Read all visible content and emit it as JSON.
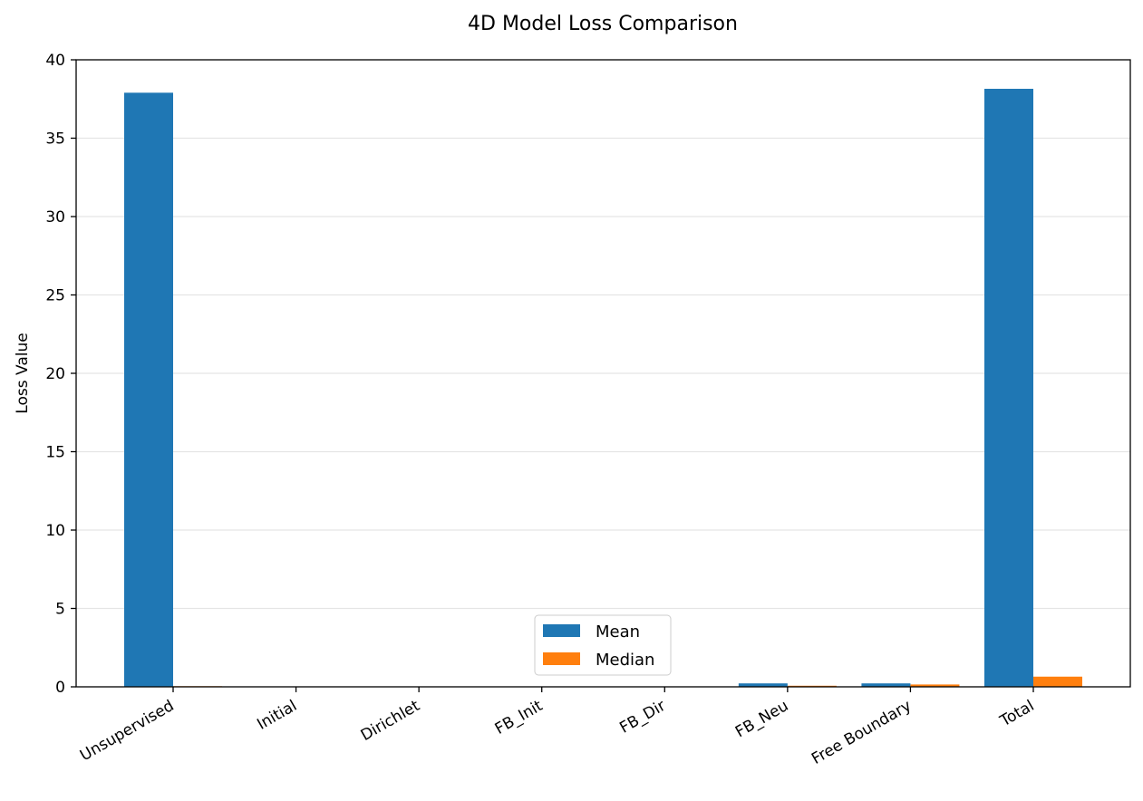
{
  "chart_data": {
    "type": "bar",
    "title": "4D Model Loss Comparison",
    "xlabel": "",
    "ylabel": "Loss Value",
    "categories": [
      "Unsupervised",
      "Initial",
      "Dirichlet",
      "FB_Init",
      "FB_Dir",
      "FB_Neu",
      "Free Boundary",
      "Total"
    ],
    "series": [
      {
        "name": "Mean",
        "color": "#1f77b4",
        "values": [
          37.9,
          0.02,
          0.01,
          0.01,
          0.01,
          0.22,
          0.22,
          38.15
        ]
      },
      {
        "name": "Median",
        "color": "#ff7f0e",
        "values": [
          0.04,
          0.01,
          0.01,
          0.0,
          0.0,
          0.07,
          0.15,
          0.65
        ]
      }
    ],
    "ylim": [
      0,
      40
    ],
    "yticks": [
      "0",
      "5",
      "10",
      "15",
      "20",
      "25",
      "30",
      "35",
      "40"
    ],
    "grid": "y",
    "legend_placement": "lower-center"
  }
}
